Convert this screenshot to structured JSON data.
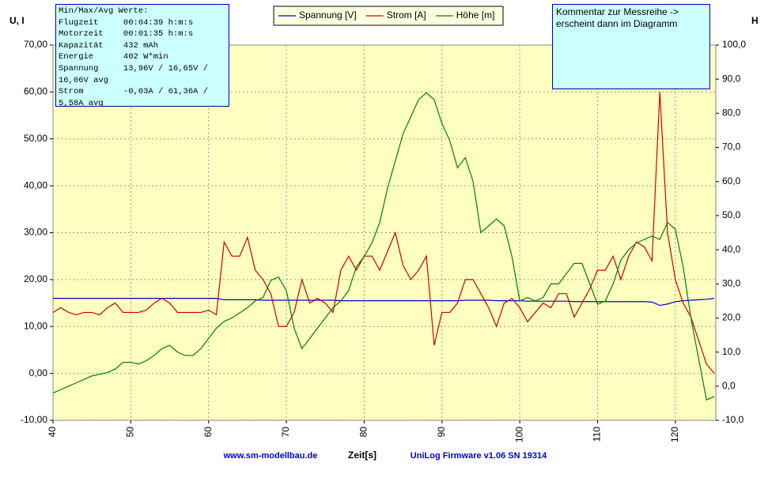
{
  "chart_data": {
    "type": "line",
    "y_label": "U, I",
    "y2_label": "H",
    "x_label": "Zeit[s]",
    "xlim": [
      40,
      125.2
    ],
    "xticks": [
      40,
      50,
      60,
      70,
      80,
      90,
      100,
      110,
      120
    ],
    "ylim": [
      -10,
      70
    ],
    "yticks": [
      {
        "value": -10,
        "label": "-10,00"
      },
      {
        "value": 0,
        "label": "0,00"
      },
      {
        "value": 10,
        "label": "10,00"
      },
      {
        "value": 20,
        "label": "20,00"
      },
      {
        "value": 30,
        "label": "30,00"
      },
      {
        "value": 40,
        "label": "40,00"
      },
      {
        "value": 50,
        "label": "50,00"
      },
      {
        "value": 60,
        "label": "60,00"
      },
      {
        "value": 70,
        "label": "70,00"
      }
    ],
    "y2lim": [
      -10,
      100
    ],
    "y2ticks": [
      {
        "value": -10,
        "label": "-10,0"
      },
      {
        "value": 0,
        "label": "0,0"
      },
      {
        "value": 10,
        "label": "10,0"
      },
      {
        "value": 20,
        "label": "20,0"
      },
      {
        "value": 30,
        "label": "30,0"
      },
      {
        "value": 40,
        "label": "40,0"
      },
      {
        "value": 50,
        "label": "50,0"
      },
      {
        "value": 60,
        "label": "60,0"
      },
      {
        "value": 70,
        "label": "70,0"
      },
      {
        "value": 80,
        "label": "80,0"
      },
      {
        "value": 90,
        "label": "90,0"
      },
      {
        "value": 100,
        "label": "100,0"
      }
    ],
    "grid": true,
    "x": [
      40,
      41,
      42,
      43,
      44,
      45,
      46,
      47,
      48,
      49,
      50,
      51,
      52,
      53,
      54,
      55,
      56,
      57,
      58,
      59,
      60,
      61,
      62,
      63,
      64,
      65,
      66,
      67,
      68,
      69,
      70,
      71,
      72,
      73,
      74,
      75,
      76,
      77,
      78,
      79,
      80,
      81,
      82,
      83,
      84,
      85,
      86,
      87,
      88,
      89,
      90,
      91,
      92,
      93,
      94,
      95,
      96,
      97,
      98,
      99,
      100,
      101,
      102,
      103,
      104,
      105,
      106,
      107,
      108,
      109,
      110,
      111,
      112,
      113,
      114,
      115,
      116,
      117,
      118,
      119,
      120,
      121,
      122,
      123,
      124,
      125
    ],
    "series": [
      {
        "name": "Spannung [V]",
        "color": "#0000cc",
        "axis": "y",
        "values": [
          16,
          16,
          16,
          16,
          16,
          16,
          16,
          16,
          16,
          16,
          16,
          16,
          16,
          16,
          16,
          16,
          16,
          16,
          16,
          16,
          16,
          16,
          15.7,
          15.7,
          15.7,
          15.7,
          15.7,
          15.6,
          15.6,
          15.6,
          15.6,
          15.6,
          15.6,
          15.6,
          15.6,
          15.6,
          15.6,
          15.5,
          15.5,
          15.5,
          15.5,
          15.5,
          15.5,
          15.5,
          15.5,
          15.5,
          15.5,
          15.5,
          15.5,
          15.5,
          15.5,
          15.5,
          15.5,
          15.6,
          15.6,
          15.6,
          15.6,
          15.5,
          15.5,
          15.5,
          15.5,
          15.4,
          15.4,
          15.4,
          15.4,
          15.4,
          15.4,
          15.3,
          15.3,
          15.3,
          15.3,
          15.3,
          15.3,
          15.3,
          15.3,
          15.3,
          15.3,
          15.2,
          14.5,
          14.8,
          15.3,
          15.5,
          15.6,
          15.7,
          15.8,
          16
        ]
      },
      {
        "name": "Strom [A]",
        "color": "#cc0000",
        "axis": "y",
        "values": [
          13,
          14,
          13,
          12.5,
          13,
          13,
          12.5,
          14,
          15,
          13,
          13,
          13,
          13.5,
          15,
          16,
          15,
          13,
          13,
          13,
          13,
          13.5,
          12.5,
          28,
          25,
          25,
          29,
          22,
          20,
          17,
          10,
          10,
          13,
          20,
          15,
          16,
          15,
          13,
          22,
          25,
          22,
          25,
          25,
          22,
          26,
          30,
          23,
          20,
          22,
          25,
          6,
          13,
          13,
          15,
          20,
          20,
          17,
          14,
          10,
          15,
          16,
          14,
          11,
          13,
          15,
          14,
          17,
          17,
          12,
          15,
          18,
          22,
          22,
          25,
          20,
          25,
          28,
          27,
          24,
          60,
          30,
          20,
          15,
          12,
          7,
          2,
          0
        ]
      },
      {
        "name": "Höhe [m]",
        "color": "#008000",
        "axis": "y2",
        "values": [
          -2,
          -1,
          0,
          1,
          2,
          3,
          3.5,
          4,
          5,
          7,
          7,
          6.5,
          7.5,
          9,
          11,
          12,
          10,
          9,
          9,
          11,
          14,
          17,
          19,
          20,
          21.5,
          23,
          25,
          26,
          31,
          32,
          28,
          17,
          11,
          14,
          17,
          20,
          23,
          25,
          28,
          35,
          38,
          42,
          48,
          58,
          66,
          74,
          79,
          84,
          86,
          84,
          77,
          72,
          64,
          67,
          60,
          45,
          47,
          49,
          47,
          38,
          25,
          26,
          25,
          26,
          30,
          30,
          33,
          36,
          36,
          30,
          24,
          25,
          30,
          37,
          40,
          42,
          43,
          44,
          43,
          48,
          46,
          35,
          20,
          8,
          -4,
          -3
        ]
      }
    ]
  },
  "info_box": {
    "lines": [
      "Min/Max/Avg Werte:",
      "Flugzeit     00:04:39 h:m:s",
      "Motorzeit    00:01:35 h:m:s",
      "Kapazität    432 mAh",
      "Energie      402 W*min",
      "Spannung     13,96V / 16,65V /",
      "16,06V avg",
      "Strom        -0,03A / 61,36A /",
      "5,58A avg"
    ]
  },
  "comment_box": {
    "lines": [
      "Kommentar zur Messreihe ->",
      "erscheint dann im Diagramm"
    ]
  },
  "footer": {
    "website": "www.sm-modellbau.de",
    "firmware": "UniLog Firmware v1.06 SN 19314"
  }
}
